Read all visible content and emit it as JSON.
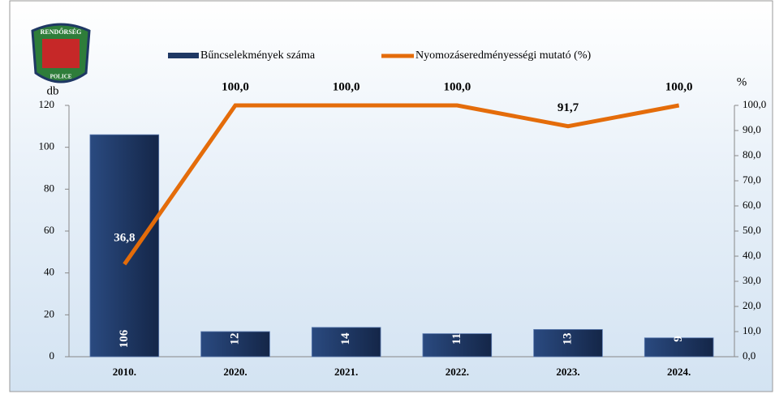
{
  "logo": {
    "top": "RENDŐRSÉG",
    "bottom": "POLICE"
  },
  "chart_data": {
    "type": "bar",
    "categories": [
      "2010.",
      "2020.",
      "2021.",
      "2022.",
      "2023.",
      "2024."
    ],
    "y_label": "db",
    "y2_label": "%",
    "ylim": [
      0,
      120
    ],
    "yticks": [
      0,
      20,
      40,
      60,
      80,
      100,
      120
    ],
    "y2lim": [
      0,
      100
    ],
    "y2ticks": [
      {
        "value": 0,
        "label": "0,0"
      },
      {
        "value": 10,
        "label": "10,0"
      },
      {
        "value": 20,
        "label": "20,0"
      },
      {
        "value": 30,
        "label": "30,0"
      },
      {
        "value": 40,
        "label": "40,0"
      },
      {
        "value": 50,
        "label": "50,0"
      },
      {
        "value": 60,
        "label": "60,0"
      },
      {
        "value": 70,
        "label": "70,0"
      },
      {
        "value": 80,
        "label": "80,0"
      },
      {
        "value": 90,
        "label": "90,0"
      },
      {
        "value": 100,
        "label": "100,0"
      }
    ],
    "series": [
      {
        "name": "Bűncselekmények száma",
        "type": "bar",
        "color": "#1f3864",
        "values": [
          106,
          12,
          14,
          11,
          13,
          9
        ]
      },
      {
        "name": "Nyomozáseredményességi mutató (%)",
        "type": "line",
        "axis": "y2",
        "color": "#e46c0a",
        "values": [
          36.8,
          100,
          100,
          100,
          91.7,
          100
        ],
        "value_labels": [
          "36,8",
          "100,0",
          "100,0",
          "100,0",
          "91,7",
          "100,0"
        ]
      }
    ]
  }
}
